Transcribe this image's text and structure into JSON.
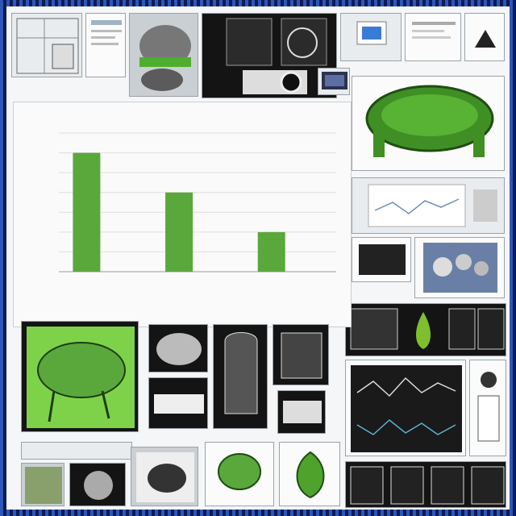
{
  "chart_data": {
    "type": "bar",
    "title": "",
    "categories": [
      "",
      "",
      ""
    ],
    "values": [
      6,
      4,
      2
    ],
    "ylim": [
      0,
      7
    ],
    "xlabel": "",
    "ylabel": "",
    "grid": true,
    "bar_color": "#5aa83c"
  },
  "caption": {
    "line1": "",
    "line2": ""
  },
  "colors": {
    "accent_green": "#5aa83c",
    "frame_blue": "#1c3b8e"
  }
}
